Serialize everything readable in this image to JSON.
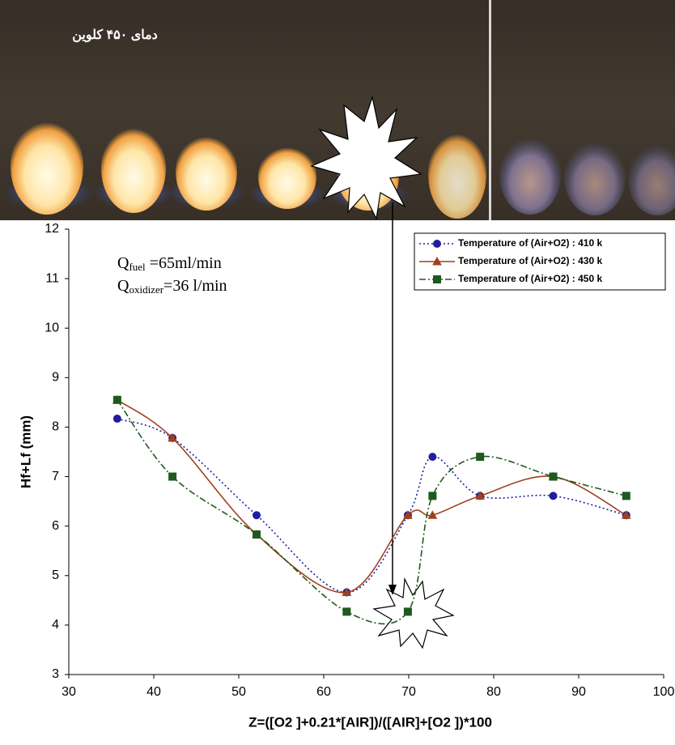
{
  "photo_caption": "دمای ۴۵۰ کلوین",
  "chart_data": {
    "type": "line",
    "smooth": true,
    "xlabel": "Z=([O2 ]+0.21*[AIR])/([AIR]+[O2 ])*100",
    "ylabel": "Hf+Lf (mm)",
    "annotations": [
      {
        "main": "Q",
        "sub": "fuel",
        "rest": " =65ml/min"
      },
      {
        "main": "Q",
        "sub": "oxidizer",
        "rest": "=36 l/min"
      }
    ],
    "x": [
      35.7,
      42.2,
      52.1,
      62.7,
      69.9,
      72.8,
      78.4,
      87.0,
      95.6
    ],
    "series": [
      {
        "name": "Temperature of (Air+O2) : 410 k",
        "color": "#1f1f9e",
        "marker": "circle",
        "dash": "2,3",
        "values": [
          8.17,
          7.78,
          6.22,
          4.66,
          6.22,
          7.4,
          6.61,
          6.61,
          6.22
        ]
      },
      {
        "name": "Temperature of (Air+O2) : 430 k",
        "color": "#a0401c",
        "marker": "triangle",
        "dash": "none",
        "values": [
          8.55,
          7.78,
          5.83,
          4.66,
          6.22,
          6.22,
          6.61,
          7.0,
          6.22
        ]
      },
      {
        "name": "Temperature of (Air+O2) : 450 k",
        "color": "#1e5a1e",
        "marker": "square",
        "dash": "8,3,2,3",
        "values": [
          8.55,
          7.0,
          5.83,
          4.27,
          4.27,
          6.61,
          7.4,
          7.0,
          6.61
        ]
      }
    ],
    "xlim": [
      30,
      100
    ],
    "xticks": [
      30,
      40,
      50,
      60,
      70,
      80,
      90,
      100
    ],
    "ylim": [
      3,
      12
    ],
    "yticks": [
      3,
      4,
      5,
      6,
      7,
      8,
      9,
      10,
      11,
      12
    ],
    "legend": "top-right"
  }
}
